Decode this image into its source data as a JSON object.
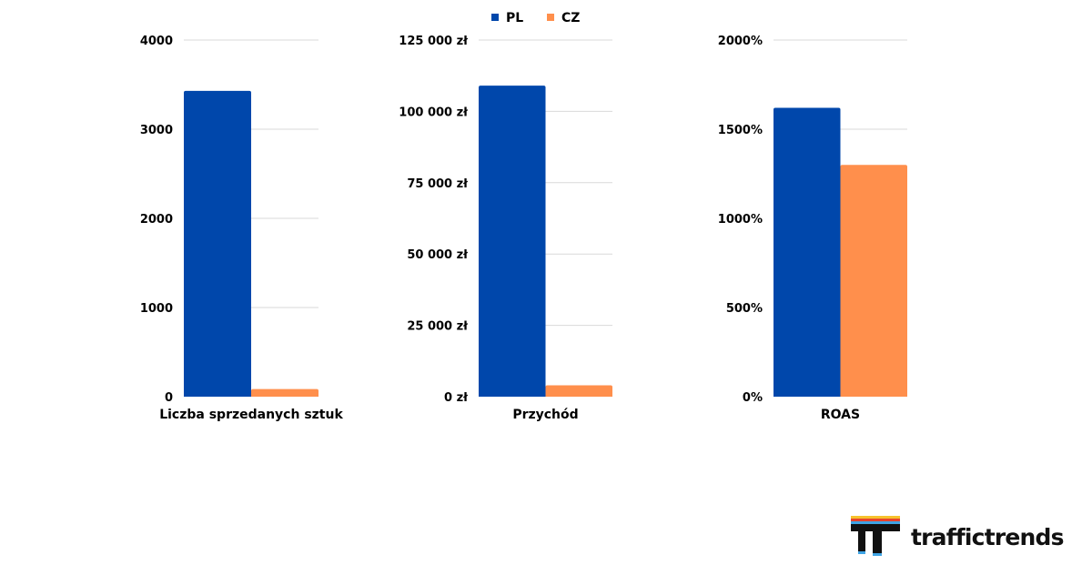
{
  "colors": {
    "PL": "#0047AB",
    "CZ": "#FF8F4C",
    "grid": "#d9d9d9"
  },
  "legend": [
    {
      "name": "PL",
      "color": "#0047AB"
    },
    {
      "name": "CZ",
      "color": "#FF8F4C"
    }
  ],
  "chart_data": [
    {
      "type": "bar",
      "categories": [
        "Liczba sprzedanych sztuk"
      ],
      "series": [
        {
          "name": "PL",
          "values": [
            3430
          ]
        },
        {
          "name": "CZ",
          "values": [
            85
          ]
        }
      ],
      "ylim": [
        0,
        4000
      ],
      "yticks": [
        0,
        1000,
        2000,
        3000,
        4000
      ],
      "ytick_labels": [
        "0",
        "1000",
        "2000",
        "3000",
        "4000"
      ],
      "grid": true
    },
    {
      "type": "bar",
      "categories": [
        "Przychód"
      ],
      "series": [
        {
          "name": "PL",
          "values": [
            109000
          ]
        },
        {
          "name": "CZ",
          "values": [
            4000
          ]
        }
      ],
      "ylim": [
        0,
        125000
      ],
      "yticks": [
        0,
        25000,
        50000,
        75000,
        100000,
        125000
      ],
      "ytick_labels": [
        "0 zł",
        "25 000 zł",
        "50 000 zł",
        "75 000 zł",
        "100 000 zł",
        "125 000 zł"
      ],
      "grid": true
    },
    {
      "type": "bar",
      "categories": [
        "ROAS"
      ],
      "series": [
        {
          "name": "PL",
          "values": [
            1620
          ]
        },
        {
          "name": "CZ",
          "values": [
            1300
          ]
        }
      ],
      "ylim": [
        0,
        2000
      ],
      "yticks": [
        0,
        500,
        1000,
        1500,
        2000
      ],
      "ytick_labels": [
        "0%",
        "500%",
        "1000%",
        "1500%",
        "2000%"
      ],
      "grid": true
    }
  ],
  "logo": {
    "text": "traffictrends",
    "stripe_colors": [
      "#F6C22D",
      "#E8432E",
      "#3FA4E5"
    ]
  }
}
